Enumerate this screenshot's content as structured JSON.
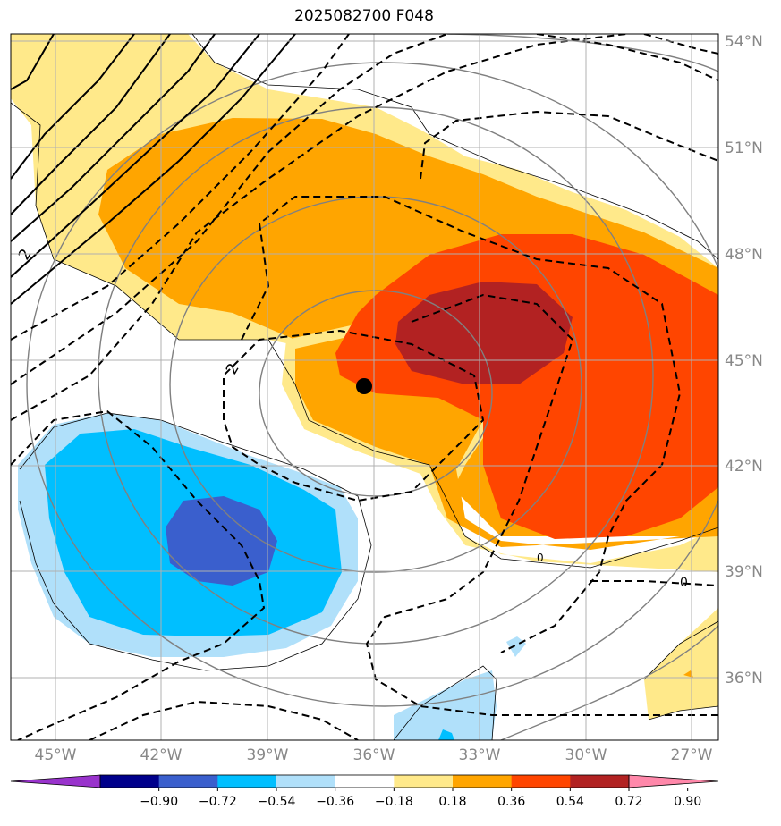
{
  "title": "2025082700 F048",
  "map": {
    "lon_labels": [
      "45°W",
      "42°W",
      "39°W",
      "36°W",
      "33°W",
      "30°W",
      "27°W"
    ],
    "lat_labels": [
      "54°N",
      "51°N",
      "48°N",
      "45°N",
      "42°N",
      "39°N",
      "36°N"
    ],
    "contour_labels": [
      "2",
      "2",
      "0",
      "0"
    ],
    "marker": {
      "lon": -36.3,
      "lat": 44.3,
      "color": "#000000"
    }
  },
  "colorbar": {
    "ticks": [
      "−0.90",
      "−0.72",
      "−0.54",
      "−0.36",
      "−0.18",
      "0.18",
      "0.36",
      "0.54",
      "0.72",
      "0.90"
    ],
    "colors": [
      "#9933cc",
      "#00008b",
      "#3a5fcd",
      "#00bfff",
      "#b0e0fa",
      "#ffffff",
      "#ffe98a",
      "#ffa500",
      "#ff4500",
      "#b22222",
      "#ff88aa"
    ]
  }
}
